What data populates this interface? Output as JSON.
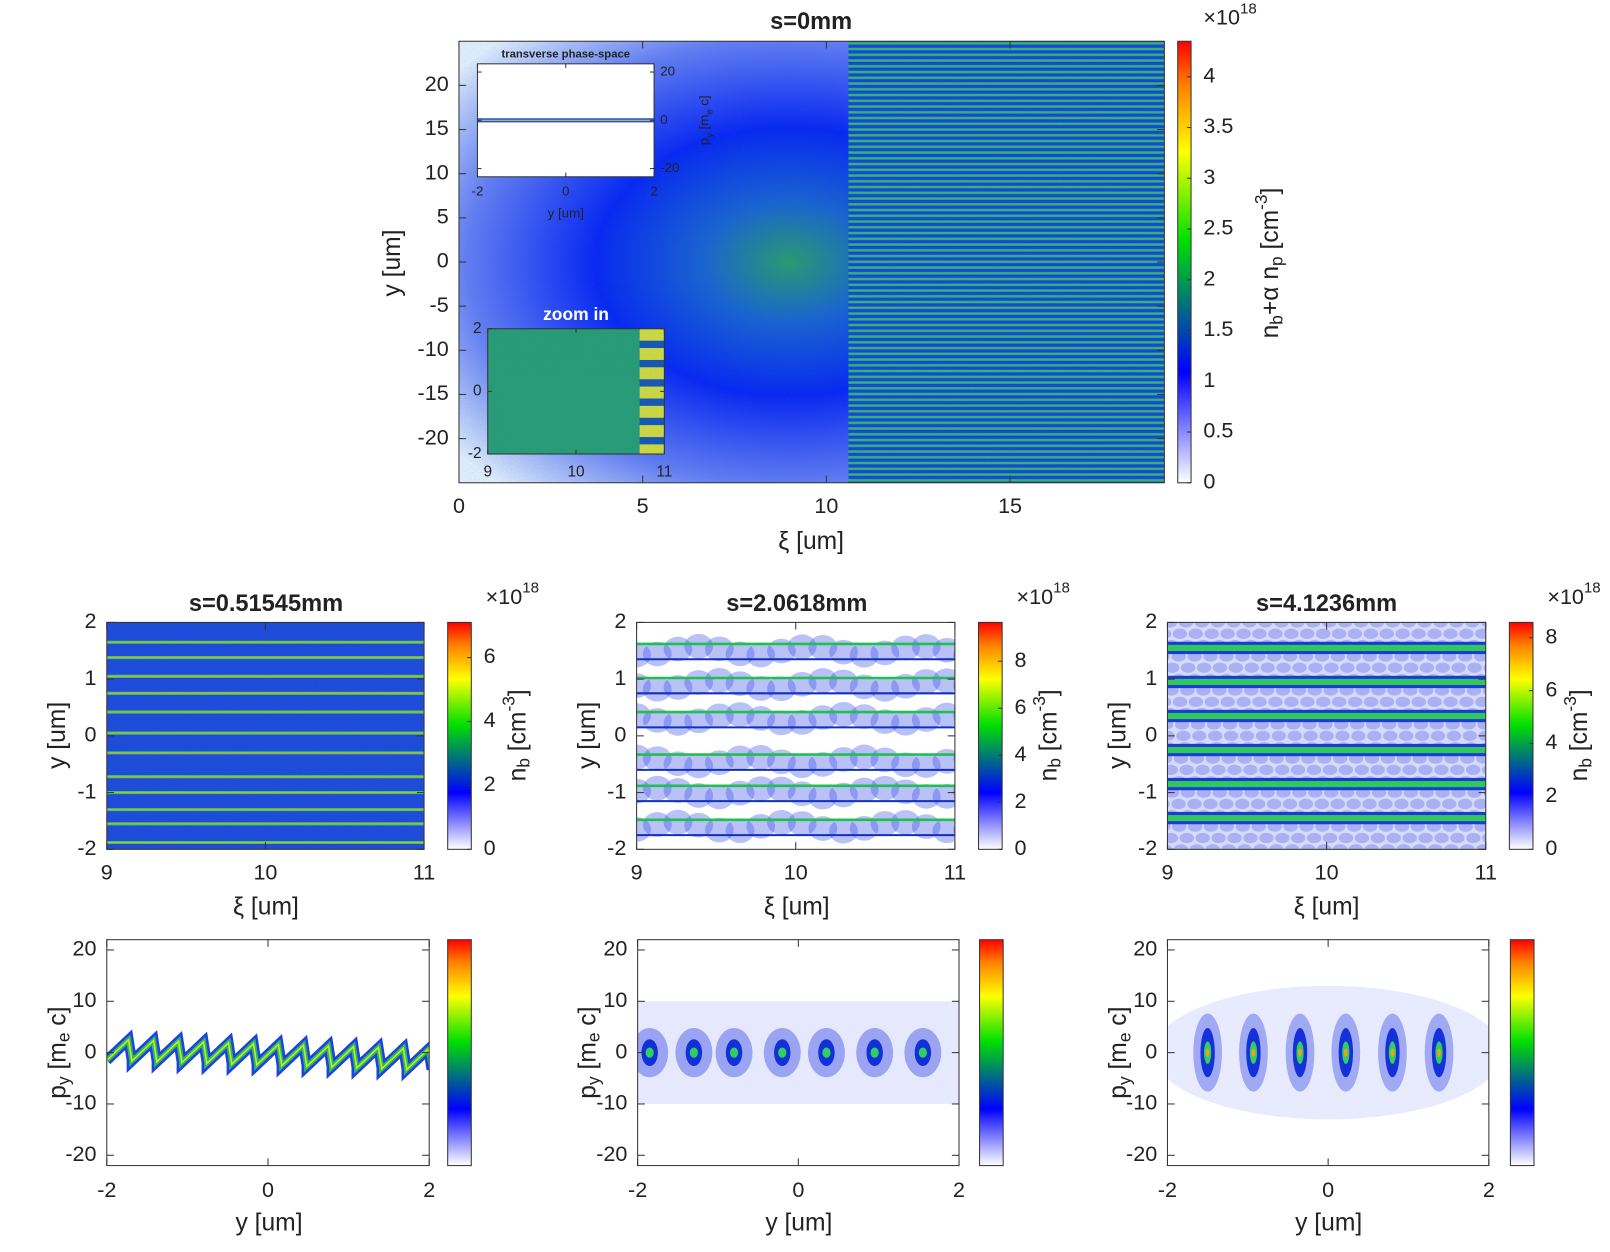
{
  "chart_data": [
    {
      "type": "heatmap",
      "title": "s=0mm",
      "xlabel": "ξ [um]",
      "ylabel": "y [um]",
      "xlim": [
        0,
        19.2
      ],
      "xticks": [
        0,
        5,
        10,
        15
      ],
      "ylim": [
        -25,
        25
      ],
      "yticks": [
        -20,
        -15,
        -10,
        -5,
        0,
        5,
        10,
        15,
        20
      ],
      "colorbar": {
        "clim": [
          0,
          4.35
        ],
        "cticks": [
          0,
          0.5,
          1,
          1.5,
          2,
          2.5,
          3,
          3.5,
          4
        ],
        "label": [
          {
            "text": "n"
          },
          {
            "text": "b",
            "shift": "sub"
          },
          {
            "text": "+α n"
          },
          {
            "text": "p",
            "shift": "sub"
          },
          {
            "text": " [cm"
          },
          {
            "text": "-3",
            "shift": "sup"
          },
          {
            "text": "]"
          }
        ],
        "exponent": [
          {
            "text": "×10"
          },
          {
            "text": "18",
            "shift": "sup"
          }
        ]
      },
      "insets": [
        {
          "type": "heatmap",
          "title": "transverse phase-space",
          "xlabel": "y [um]",
          "ylabel": [
            {
              "text": "p"
            },
            {
              "text": "y",
              "shift": "sub"
            },
            {
              "text": " [m"
            },
            {
              "text": "e",
              "shift": "sub"
            },
            {
              "text": " c]"
            }
          ],
          "xlim": [
            -2,
            2
          ],
          "xticks": [
            -2,
            0,
            2
          ],
          "ylim": [
            -23.4,
            23.4
          ],
          "yticks": [
            -20,
            0,
            20
          ],
          "ytick_side": "right"
        },
        {
          "type": "heatmap",
          "title": "zoom in",
          "xlim": [
            9,
            11
          ],
          "xticks": [
            9,
            10,
            11
          ],
          "ylim": [
            -2,
            2
          ],
          "yticks": [
            -2,
            0,
            2
          ]
        }
      ]
    },
    {
      "type": "heatmap",
      "title": "s=0.51545mm",
      "xlabel": "ξ [um]",
      "ylabel": "y [um]",
      "xlim": [
        9,
        11
      ],
      "xticks": [
        9,
        10,
        11
      ],
      "ylim": [
        -2,
        2
      ],
      "yticks": [
        -2,
        -1,
        0,
        1,
        2
      ],
      "colorbar": {
        "clim": [
          0,
          7.1
        ],
        "cticks": [
          0,
          2,
          4,
          6
        ],
        "label": [
          {
            "text": "n"
          },
          {
            "text": "b",
            "shift": "sub"
          },
          {
            "text": " [cm"
          },
          {
            "text": "-3",
            "shift": "sup"
          },
          {
            "text": "]"
          }
        ],
        "exponent": [
          {
            "text": "×10"
          },
          {
            "text": "18",
            "shift": "sup"
          }
        ]
      }
    },
    {
      "type": "heatmap",
      "title": "s=2.0618mm",
      "xlabel": "ξ [um]",
      "ylabel": "y [um]",
      "xlim": [
        9,
        11
      ],
      "xticks": [
        9,
        10,
        11
      ],
      "ylim": [
        -2,
        2
      ],
      "yticks": [
        -2,
        -1,
        0,
        1,
        2
      ],
      "colorbar": {
        "clim": [
          0,
          9.65
        ],
        "cticks": [
          0,
          2,
          4,
          6,
          8
        ],
        "label": [
          {
            "text": "n"
          },
          {
            "text": "b",
            "shift": "sub"
          },
          {
            "text": " [cm"
          },
          {
            "text": "-3",
            "shift": "sup"
          },
          {
            "text": "]"
          }
        ],
        "exponent": [
          {
            "text": "×10"
          },
          {
            "text": "18",
            "shift": "sup"
          }
        ]
      }
    },
    {
      "type": "heatmap",
      "title": "s=4.1236mm",
      "xlabel": "ξ [um]",
      "ylabel": "y [um]",
      "xlim": [
        9,
        11
      ],
      "xticks": [
        9,
        10,
        11
      ],
      "ylim": [
        -2,
        2
      ],
      "yticks": [
        -2,
        -1,
        0,
        1,
        2
      ],
      "colorbar": {
        "clim": [
          0,
          8.58
        ],
        "cticks": [
          0,
          2,
          4,
          6,
          8
        ],
        "label": [
          {
            "text": "n"
          },
          {
            "text": "b",
            "shift": "sub"
          },
          {
            "text": " [cm"
          },
          {
            "text": "-3",
            "shift": "sup"
          },
          {
            "text": "]"
          }
        ],
        "exponent": [
          {
            "text": "×10"
          },
          {
            "text": "18",
            "shift": "sup"
          }
        ]
      }
    },
    {
      "type": "heatmap",
      "xlabel": "y [um]",
      "ylabel": [
        {
          "text": "p"
        },
        {
          "text": "y",
          "shift": "sub"
        },
        {
          "text": " [m"
        },
        {
          "text": "e",
          "shift": "sub"
        },
        {
          "text": " c]"
        }
      ],
      "xlim": [
        -2,
        2
      ],
      "xticks": [
        -2,
        0,
        2
      ],
      "ylim": [
        -22,
        22
      ],
      "yticks": [
        -20,
        -10,
        0,
        10,
        20
      ],
      "colorbar": true
    },
    {
      "type": "heatmap",
      "xlabel": "y [um]",
      "ylabel": [
        {
          "text": "p"
        },
        {
          "text": "y",
          "shift": "sub"
        },
        {
          "text": " [m"
        },
        {
          "text": "e",
          "shift": "sub"
        },
        {
          "text": " c]"
        }
      ],
      "xlim": [
        -2,
        2
      ],
      "xticks": [
        -2,
        0,
        2
      ],
      "ylim": [
        -22,
        22
      ],
      "yticks": [
        -20,
        -10,
        0,
        10,
        20
      ],
      "colorbar": true
    },
    {
      "type": "heatmap",
      "xlabel": "y [um]",
      "ylabel": [
        {
          "text": "p"
        },
        {
          "text": "y",
          "shift": "sub"
        },
        {
          "text": " [m"
        },
        {
          "text": "e",
          "shift": "sub"
        },
        {
          "text": " c]"
        }
      ],
      "xlim": [
        -2,
        2
      ],
      "xticks": [
        -2,
        0,
        2
      ],
      "ylim": [
        -22,
        22
      ],
      "yticks": [
        -20,
        -10,
        0,
        10,
        20
      ],
      "colorbar": true
    }
  ]
}
